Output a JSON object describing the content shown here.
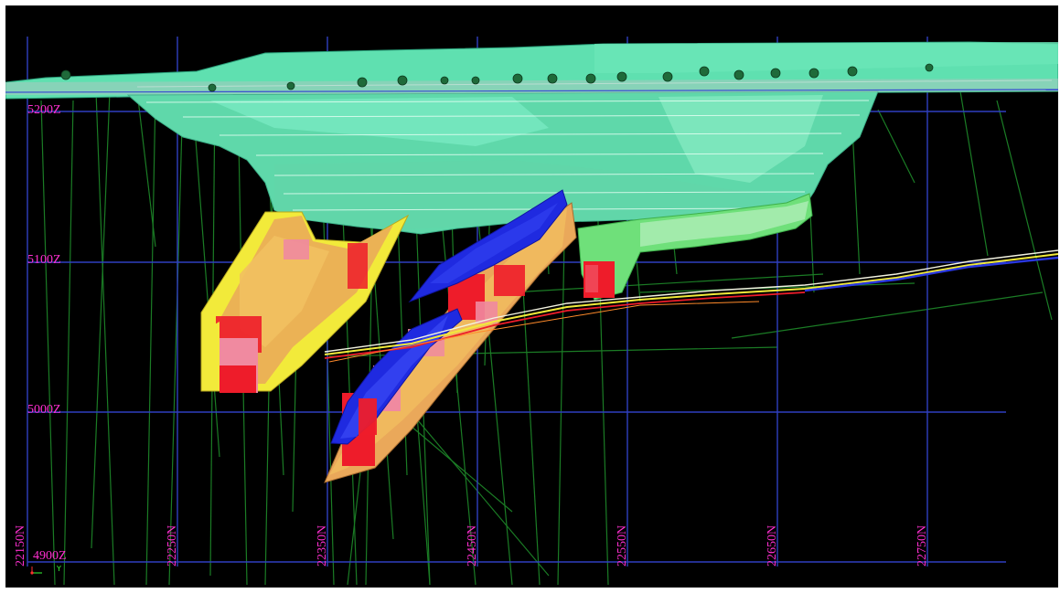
{
  "viewer": {
    "background": "#000000",
    "grid_color": "#2f3fbf",
    "label_color": "#ff2fd0"
  },
  "elevation_labels": [
    "5200Z",
    "5100Z",
    "5000Z",
    "4900Z"
  ],
  "northing_labels": [
    "22150N",
    "22250N",
    "22350N",
    "22450N",
    "22550N",
    "22650N",
    "22750N"
  ],
  "axis_triad": {
    "y_label": "Y"
  },
  "colors": {
    "pit_shell": "#5fe0b0",
    "pit_shell_light": "#8ff0c8",
    "underground_green": "#6fe07a",
    "orebody_yellow": "#f2ea3a",
    "orebody_orange": "#eaa85a",
    "orebody_red": "#ee1c2a",
    "orebody_pink": "#f08aa0",
    "orebody_blue": "#1f2ae0",
    "drillhole": "#1e8a2a",
    "fault_trace": "#f2f2e0"
  }
}
